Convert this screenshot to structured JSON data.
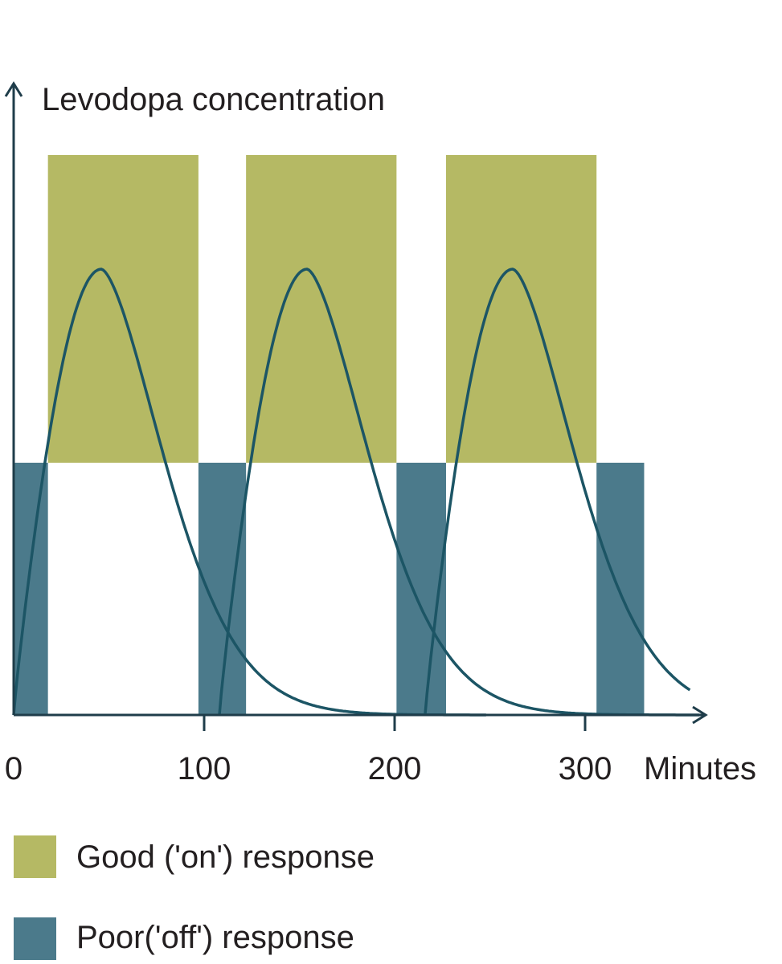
{
  "chart_data": {
    "type": "area",
    "ylabel": "Levodopa concentration",
    "xlabel": "Minutes",
    "xlim": [
      0,
      360
    ],
    "xticks": [
      {
        "value": 0,
        "label": "0"
      },
      {
        "value": 100,
        "label": "100"
      },
      {
        "value": 200,
        "label": "200"
      },
      {
        "value": 300,
        "label": "300"
      }
    ],
    "y_units": "relative (concentration axis not scaled)",
    "response_threshold": 0.4,
    "on_periods": [
      {
        "start": 18,
        "end": 97
      },
      {
        "start": 122,
        "end": 201
      },
      {
        "start": 227,
        "end": 306
      }
    ],
    "off_periods": [
      {
        "start": 0,
        "end": 18
      },
      {
        "start": 97,
        "end": 122
      },
      {
        "start": 201,
        "end": 227
      },
      {
        "start": 306,
        "end": 331
      }
    ],
    "doses": [
      {
        "start": 0,
        "peak_time": 46,
        "end_time": 248
      },
      {
        "start": 108,
        "peak_time": 154,
        "end_time": 360
      },
      {
        "start": 216,
        "peak_time": 262,
        "end_time": 355
      }
    ],
    "legend": [
      {
        "label": "Good ('on') response",
        "color": "#b5b964"
      },
      {
        "label": "Poor('off') response",
        "color": "#4b7a8b"
      }
    ],
    "legend_position": "bottom-left",
    "colors": {
      "on": "#b5b964",
      "off": "#4b7a8b",
      "curve": "#1c5565",
      "axis": "#1f3d4a"
    }
  }
}
